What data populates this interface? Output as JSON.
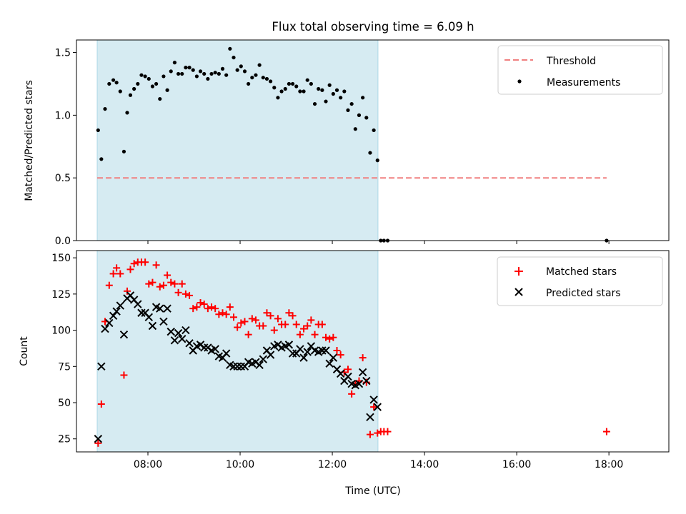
{
  "chart_data": [
    {
      "type": "scatter",
      "title": "Flux total observing time = 6.09 h",
      "xlabel": "",
      "ylabel": "Matched/Predicted stars",
      "xlim": [
        6.45,
        19.3
      ],
      "ylim": [
        0,
        1.6
      ],
      "yticks": [
        0.0,
        0.5,
        1.0,
        1.5
      ],
      "ytick_labels": [
        "0.0",
        "0.5",
        "1.0",
        "1.5"
      ],
      "xticks": [
        8,
        10,
        12,
        14,
        16,
        18
      ],
      "grid": false,
      "legend": "top-right",
      "shaded_region": {
        "x0": 6.9,
        "x1": 12.99,
        "color": "#add8e6"
      },
      "threshold": {
        "name": "Threshold",
        "y": 0.5,
        "x0": 6.9,
        "x1": 17.95,
        "color": "#f08080"
      },
      "series": [
        {
          "name": "Measurements",
          "color": "#000000",
          "marker": "dot",
          "points": [
            [
              6.92,
              0.88
            ],
            [
              6.99,
              0.65
            ],
            [
              7.07,
              1.05
            ],
            [
              7.16,
              1.25
            ],
            [
              7.25,
              1.28
            ],
            [
              7.32,
              1.26
            ],
            [
              7.4,
              1.19
            ],
            [
              7.48,
              0.71
            ],
            [
              7.55,
              1.02
            ],
            [
              7.62,
              1.16
            ],
            [
              7.7,
              1.21
            ],
            [
              7.78,
              1.25
            ],
            [
              7.86,
              1.32
            ],
            [
              7.94,
              1.31
            ],
            [
              8.02,
              1.29
            ],
            [
              8.1,
              1.23
            ],
            [
              8.18,
              1.25
            ],
            [
              8.26,
              1.13
            ],
            [
              8.34,
              1.31
            ],
            [
              8.42,
              1.2
            ],
            [
              8.5,
              1.35
            ],
            [
              8.58,
              1.42
            ],
            [
              8.66,
              1.33
            ],
            [
              8.74,
              1.33
            ],
            [
              8.82,
              1.38
            ],
            [
              8.9,
              1.38
            ],
            [
              8.98,
              1.36
            ],
            [
              9.06,
              1.31
            ],
            [
              9.14,
              1.35
            ],
            [
              9.22,
              1.33
            ],
            [
              9.3,
              1.29
            ],
            [
              9.38,
              1.33
            ],
            [
              9.46,
              1.34
            ],
            [
              9.54,
              1.33
            ],
            [
              9.62,
              1.37
            ],
            [
              9.7,
              1.32
            ],
            [
              9.78,
              1.53
            ],
            [
              9.86,
              1.46
            ],
            [
              9.94,
              1.36
            ],
            [
              10.02,
              1.39
            ],
            [
              10.1,
              1.35
            ],
            [
              10.18,
              1.25
            ],
            [
              10.26,
              1.3
            ],
            [
              10.34,
              1.32
            ],
            [
              10.42,
              1.4
            ],
            [
              10.5,
              1.3
            ],
            [
              10.58,
              1.29
            ],
            [
              10.66,
              1.27
            ],
            [
              10.74,
              1.22
            ],
            [
              10.82,
              1.14
            ],
            [
              10.9,
              1.19
            ],
            [
              10.98,
              1.21
            ],
            [
              11.06,
              1.25
            ],
            [
              11.14,
              1.25
            ],
            [
              11.22,
              1.23
            ],
            [
              11.3,
              1.19
            ],
            [
              11.38,
              1.19
            ],
            [
              11.46,
              1.28
            ],
            [
              11.54,
              1.25
            ],
            [
              11.62,
              1.09
            ],
            [
              11.7,
              1.21
            ],
            [
              11.78,
              1.2
            ],
            [
              11.86,
              1.11
            ],
            [
              11.94,
              1.24
            ],
            [
              12.02,
              1.17
            ],
            [
              12.1,
              1.2
            ],
            [
              12.18,
              1.14
            ],
            [
              12.26,
              1.19
            ],
            [
              12.34,
              1.04
            ],
            [
              12.42,
              1.09
            ],
            [
              12.5,
              0.89
            ],
            [
              12.58,
              1.0
            ],
            [
              12.66,
              1.14
            ],
            [
              12.74,
              0.98
            ],
            [
              12.82,
              0.7
            ],
            [
              12.9,
              0.88
            ],
            [
              12.98,
              0.64
            ],
            [
              13.05,
              0.0
            ],
            [
              13.12,
              0.0
            ],
            [
              13.2,
              0.0
            ],
            [
              17.95,
              0.0
            ]
          ]
        }
      ]
    },
    {
      "type": "scatter",
      "title": "",
      "xlabel": "Time (UTC)",
      "ylabel": "Count",
      "xlim": [
        6.45,
        19.3
      ],
      "ylim": [
        16,
        155
      ],
      "yticks": [
        25,
        50,
        75,
        100,
        125,
        150
      ],
      "ytick_labels": [
        "25",
        "50",
        "75",
        "100",
        "125",
        "150"
      ],
      "xticks": [
        8,
        10,
        12,
        14,
        16,
        18
      ],
      "xtick_labels": [
        "08:00",
        "10:00",
        "12:00",
        "14:00",
        "16:00",
        "18:00"
      ],
      "grid": false,
      "legend": "top-right",
      "shaded_region": {
        "x0": 6.9,
        "x1": 12.99,
        "color": "#add8e6"
      },
      "series": [
        {
          "name": "Matched stars",
          "color": "#ff0000",
          "marker": "plus",
          "points": [
            [
              6.92,
              22
            ],
            [
              6.99,
              49
            ],
            [
              7.07,
              106
            ],
            [
              7.16,
              131
            ],
            [
              7.25,
              139
            ],
            [
              7.32,
              143
            ],
            [
              7.4,
              139
            ],
            [
              7.48,
              69
            ],
            [
              7.55,
              127
            ],
            [
              7.62,
              142
            ],
            [
              7.7,
              146
            ],
            [
              7.78,
              147
            ],
            [
              7.86,
              147
            ],
            [
              7.94,
              147
            ],
            [
              8.02,
              132
            ],
            [
              8.1,
              133
            ],
            [
              8.18,
              145
            ],
            [
              8.26,
              130
            ],
            [
              8.34,
              131
            ],
            [
              8.42,
              138
            ],
            [
              8.5,
              133
            ],
            [
              8.58,
              132
            ],
            [
              8.66,
              126
            ],
            [
              8.74,
              132
            ],
            [
              8.82,
              125
            ],
            [
              8.9,
              124
            ],
            [
              8.98,
              115
            ],
            [
              9.06,
              116
            ],
            [
              9.14,
              119
            ],
            [
              9.22,
              118
            ],
            [
              9.3,
              115
            ],
            [
              9.38,
              116
            ],
            [
              9.46,
              115
            ],
            [
              9.54,
              111
            ],
            [
              9.62,
              112
            ],
            [
              9.7,
              111
            ],
            [
              9.78,
              116
            ],
            [
              9.86,
              109
            ],
            [
              9.94,
              102
            ],
            [
              10.02,
              105
            ],
            [
              10.1,
              106
            ],
            [
              10.18,
              97
            ],
            [
              10.26,
              108
            ],
            [
              10.34,
              107
            ],
            [
              10.42,
              103
            ],
            [
              10.5,
              103
            ],
            [
              10.58,
              112
            ],
            [
              10.66,
              110
            ],
            [
              10.74,
              100
            ],
            [
              10.82,
              108
            ],
            [
              10.9,
              104
            ],
            [
              10.98,
              104
            ],
            [
              11.06,
              112
            ],
            [
              11.14,
              110
            ],
            [
              11.22,
              104
            ],
            [
              11.3,
              97
            ],
            [
              11.38,
              101
            ],
            [
              11.46,
              103
            ],
            [
              11.54,
              107
            ],
            [
              11.62,
              97
            ],
            [
              11.7,
              104
            ],
            [
              11.78,
              104
            ],
            [
              11.86,
              95
            ],
            [
              11.94,
              94
            ],
            [
              12.02,
              95
            ],
            [
              12.1,
              86
            ],
            [
              12.18,
              83
            ],
            [
              12.26,
              71
            ],
            [
              12.34,
              73
            ],
            [
              12.42,
              56
            ],
            [
              12.5,
              63
            ],
            [
              12.58,
              65
            ],
            [
              12.66,
              81
            ],
            [
              12.74,
              64
            ],
            [
              12.82,
              28
            ],
            [
              12.9,
              47
            ],
            [
              12.98,
              29
            ],
            [
              13.05,
              30
            ],
            [
              13.12,
              30
            ],
            [
              13.2,
              30
            ],
            [
              17.95,
              30
            ]
          ]
        },
        {
          "name": "Predicted stars",
          "color": "#000000",
          "marker": "x",
          "points": [
            [
              6.92,
              25
            ],
            [
              6.99,
              75
            ],
            [
              7.07,
              101
            ],
            [
              7.16,
              105
            ],
            [
              7.25,
              110
            ],
            [
              7.32,
              113
            ],
            [
              7.4,
              117
            ],
            [
              7.48,
              97
            ],
            [
              7.55,
              122
            ],
            [
              7.62,
              124
            ],
            [
              7.7,
              121
            ],
            [
              7.78,
              118
            ],
            [
              7.86,
              112
            ],
            [
              7.94,
              112
            ],
            [
              8.02,
              109
            ],
            [
              8.1,
              103
            ],
            [
              8.18,
              116
            ],
            [
              8.26,
              115
            ],
            [
              8.34,
              106
            ],
            [
              8.42,
              115
            ],
            [
              8.5,
              99
            ],
            [
              8.58,
              93
            ],
            [
              8.66,
              98
            ],
            [
              8.74,
              94
            ],
            [
              8.82,
              100
            ],
            [
              8.9,
              91
            ],
            [
              8.98,
              86
            ],
            [
              9.06,
              89
            ],
            [
              9.14,
              90
            ],
            [
              9.22,
              88
            ],
            [
              9.3,
              88
            ],
            [
              9.38,
              86
            ],
            [
              9.46,
              87
            ],
            [
              9.54,
              82
            ],
            [
              9.62,
              81
            ],
            [
              9.7,
              84
            ],
            [
              9.78,
              76
            ],
            [
              9.86,
              75
            ],
            [
              9.94,
              75
            ],
            [
              10.02,
              75
            ],
            [
              10.1,
              75
            ],
            [
              10.18,
              78
            ],
            [
              10.26,
              77
            ],
            [
              10.34,
              78
            ],
            [
              10.42,
              76
            ],
            [
              10.5,
              80
            ],
            [
              10.58,
              86
            ],
            [
              10.66,
              83
            ],
            [
              10.74,
              89
            ],
            [
              10.82,
              90
            ],
            [
              10.9,
              88
            ],
            [
              10.98,
              89
            ],
            [
              11.06,
              90
            ],
            [
              11.14,
              84
            ],
            [
              11.22,
              84
            ],
            [
              11.3,
              87
            ],
            [
              11.38,
              81
            ],
            [
              11.46,
              85
            ],
            [
              11.54,
              89
            ],
            [
              11.62,
              86
            ],
            [
              11.7,
              85
            ],
            [
              11.78,
              86
            ],
            [
              11.86,
              86
            ],
            [
              11.94,
              77
            ],
            [
              12.02,
              81
            ],
            [
              12.1,
              73
            ],
            [
              12.18,
              70
            ],
            [
              12.26,
              65
            ],
            [
              12.34,
              68
            ],
            [
              12.42,
              63
            ],
            [
              12.5,
              62
            ],
            [
              12.58,
              63
            ],
            [
              12.66,
              71
            ],
            [
              12.74,
              65
            ],
            [
              12.82,
              40
            ],
            [
              12.9,
              52
            ],
            [
              12.98,
              47
            ]
          ]
        }
      ]
    }
  ]
}
